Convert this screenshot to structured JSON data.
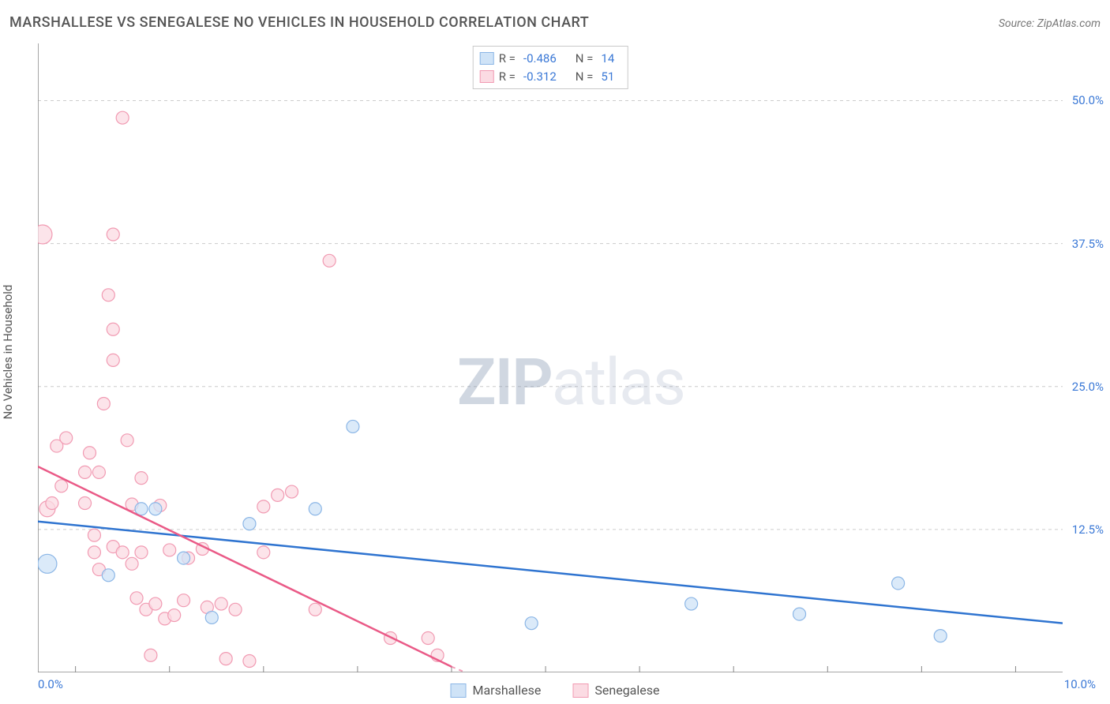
{
  "title": "MARSHALLESE VS SENEGALESE NO VEHICLES IN HOUSEHOLD CORRELATION CHART",
  "source_label": "Source: ZipAtlas.com",
  "y_axis_label": "No Vehicles in Household",
  "watermark_a": "ZIP",
  "watermark_b": "atlas",
  "x_ticks": {
    "min_label": "0.0%",
    "max_label": "10.0%"
  },
  "x_range": [
    -0.4,
    10.5
  ],
  "y_range": [
    0,
    55
  ],
  "y_ticks": [
    {
      "value": 12.5,
      "label": "12.5%"
    },
    {
      "value": 25.0,
      "label": "25.0%"
    },
    {
      "value": 37.5,
      "label": "37.5%"
    },
    {
      "value": 50.0,
      "label": "50.0%"
    }
  ],
  "grid_color": "#cccccc",
  "axis_color": "#888888",
  "minor_ticks_x": [
    0,
    1,
    2,
    3,
    4,
    5,
    6,
    7,
    8,
    9,
    10
  ],
  "series": {
    "marshallese": {
      "label": "Marshallese",
      "fill": "#cfe3f7",
      "stroke": "#8bb6e6",
      "line_color": "#2f74d0",
      "r_stat": "-0.486",
      "n_stat": "14",
      "trend": {
        "x1": -0.4,
        "y1": 13.2,
        "x2": 10.5,
        "y2": 4.3
      },
      "points": [
        {
          "x": -0.3,
          "y": 9.5,
          "r": 12
        },
        {
          "x": 0.35,
          "y": 8.5,
          "r": 8
        },
        {
          "x": 0.7,
          "y": 14.3,
          "r": 8
        },
        {
          "x": 0.85,
          "y": 14.3,
          "r": 8
        },
        {
          "x": 1.15,
          "y": 10.0,
          "r": 8
        },
        {
          "x": 1.45,
          "y": 4.8,
          "r": 8
        },
        {
          "x": 1.85,
          "y": 13.0,
          "r": 8
        },
        {
          "x": 2.55,
          "y": 14.3,
          "r": 8
        },
        {
          "x": 2.95,
          "y": 21.5,
          "r": 8
        },
        {
          "x": 4.85,
          "y": 4.3,
          "r": 8
        },
        {
          "x": 6.55,
          "y": 6.0,
          "r": 8
        },
        {
          "x": 7.7,
          "y": 5.1,
          "r": 8
        },
        {
          "x": 8.75,
          "y": 7.8,
          "r": 8
        },
        {
          "x": 9.2,
          "y": 3.2,
          "r": 8
        }
      ]
    },
    "senegalese": {
      "label": "Senegalese",
      "fill": "#fbdbe3",
      "stroke": "#f19ab2",
      "line_color": "#ea5a87",
      "r_stat": "-0.312",
      "n_stat": "51",
      "trend_solid": {
        "x1": -0.4,
        "y1": 18.0,
        "x2": 4.0,
        "y2": 0.5
      },
      "trend_dash": {
        "x1": 4.0,
        "y1": 0.5,
        "x2": 4.15,
        "y2": 0
      },
      "points": [
        {
          "x": -0.35,
          "y": 38.3,
          "r": 12
        },
        {
          "x": -0.3,
          "y": 14.3,
          "r": 10
        },
        {
          "x": -0.25,
          "y": 14.8,
          "r": 8
        },
        {
          "x": -0.2,
          "y": 19.8,
          "r": 8
        },
        {
          "x": -0.15,
          "y": 16.3,
          "r": 8
        },
        {
          "x": -0.1,
          "y": 20.5,
          "r": 8
        },
        {
          "x": 0.1,
          "y": 17.5,
          "r": 8
        },
        {
          "x": 0.1,
          "y": 14.8,
          "r": 8
        },
        {
          "x": 0.15,
          "y": 19.2,
          "r": 8
        },
        {
          "x": 0.2,
          "y": 12.0,
          "r": 8
        },
        {
          "x": 0.25,
          "y": 17.5,
          "r": 8
        },
        {
          "x": 0.3,
          "y": 23.5,
          "r": 8
        },
        {
          "x": 0.35,
          "y": 33.0,
          "r": 8
        },
        {
          "x": 0.4,
          "y": 30.0,
          "r": 8
        },
        {
          "x": 0.4,
          "y": 27.3,
          "r": 8
        },
        {
          "x": 0.4,
          "y": 38.3,
          "r": 8
        },
        {
          "x": 0.5,
          "y": 48.5,
          "r": 8
        },
        {
          "x": 0.2,
          "y": 10.5,
          "r": 8
        },
        {
          "x": 0.25,
          "y": 9.0,
          "r": 8
        },
        {
          "x": 0.4,
          "y": 11.0,
          "r": 8
        },
        {
          "x": 0.5,
          "y": 10.5,
          "r": 8
        },
        {
          "x": 0.55,
          "y": 20.3,
          "r": 8
        },
        {
          "x": 0.6,
          "y": 14.7,
          "r": 8
        },
        {
          "x": 0.6,
          "y": 9.5,
          "r": 8
        },
        {
          "x": 0.65,
          "y": 6.5,
          "r": 8
        },
        {
          "x": 0.7,
          "y": 17.0,
          "r": 8
        },
        {
          "x": 0.7,
          "y": 10.5,
          "r": 8
        },
        {
          "x": 0.75,
          "y": 5.5,
          "r": 8
        },
        {
          "x": 0.8,
          "y": 1.5,
          "r": 8
        },
        {
          "x": 0.85,
          "y": 6.0,
          "r": 8
        },
        {
          "x": 0.9,
          "y": 14.6,
          "r": 8
        },
        {
          "x": 0.95,
          "y": 4.7,
          "r": 8
        },
        {
          "x": 1.0,
          "y": 10.7,
          "r": 8
        },
        {
          "x": 1.05,
          "y": 5.0,
          "r": 8
        },
        {
          "x": 1.15,
          "y": 6.3,
          "r": 8
        },
        {
          "x": 1.2,
          "y": 10.0,
          "r": 8
        },
        {
          "x": 1.35,
          "y": 10.8,
          "r": 8
        },
        {
          "x": 1.4,
          "y": 5.7,
          "r": 8
        },
        {
          "x": 1.55,
          "y": 6.0,
          "r": 8
        },
        {
          "x": 1.6,
          "y": 1.2,
          "r": 8
        },
        {
          "x": 1.7,
          "y": 5.5,
          "r": 8
        },
        {
          "x": 1.85,
          "y": 1.0,
          "r": 8
        },
        {
          "x": 2.0,
          "y": 14.5,
          "r": 8
        },
        {
          "x": 2.15,
          "y": 15.5,
          "r": 8
        },
        {
          "x": 2.3,
          "y": 15.8,
          "r": 8
        },
        {
          "x": 2.55,
          "y": 5.5,
          "r": 8
        },
        {
          "x": 2.7,
          "y": 36.0,
          "r": 8
        },
        {
          "x": 3.35,
          "y": 3.0,
          "r": 8
        },
        {
          "x": 3.75,
          "y": 3.0,
          "r": 8
        },
        {
          "x": 3.85,
          "y": 1.5,
          "r": 8
        },
        {
          "x": 2.0,
          "y": 10.5,
          "r": 8
        }
      ]
    }
  },
  "stats_box_labels": {
    "r": "R  =",
    "n": "N  ="
  },
  "legend_labels": {
    "a": "Marshallese",
    "b": "Senegalese"
  }
}
